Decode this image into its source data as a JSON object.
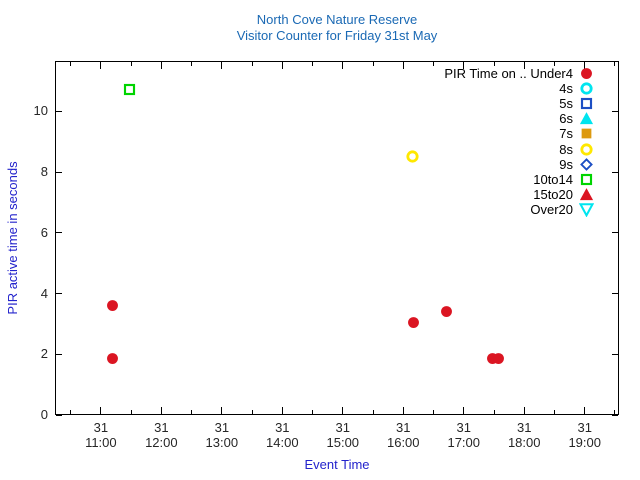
{
  "chart_data": {
    "type": "scatter",
    "title": "North Cove Nature Reserve",
    "subtitle": "Visitor Counter for Friday 31st May",
    "xlabel": "Event Time",
    "ylabel": "PIR active time in seconds",
    "grid": false,
    "legend_position": "top-right-inside",
    "x_axis": {
      "range_minutes": [
        614.5,
        1174
      ],
      "minor_step_minutes": 30,
      "ticks": [
        {
          "day": "31",
          "time": "11:00"
        },
        {
          "day": "31",
          "time": "12:00"
        },
        {
          "day": "31",
          "time": "13:00"
        },
        {
          "day": "31",
          "time": "14:00"
        },
        {
          "day": "31",
          "time": "15:00"
        },
        {
          "day": "31",
          "time": "16:00"
        },
        {
          "day": "31",
          "time": "17:00"
        },
        {
          "day": "31",
          "time": "18:00"
        },
        {
          "day": "31",
          "time": "19:00"
        }
      ]
    },
    "y_axis": {
      "range": [
        0,
        11.66
      ],
      "ticks": [
        0,
        2,
        4,
        6,
        8,
        10
      ]
    },
    "legend": [
      {
        "label": "PIR Time on .. Under4",
        "shape": "circle",
        "fill": true,
        "color": "#db1522"
      },
      {
        "label": "4s",
        "shape": "circle",
        "fill": false,
        "color": "#00e5ef"
      },
      {
        "label": "5s",
        "shape": "square",
        "fill": false,
        "color": "#1d4fc4"
      },
      {
        "label": "6s",
        "shape": "triangle-up",
        "fill": true,
        "color": "#00e5ef"
      },
      {
        "label": "7s",
        "shape": "square",
        "fill": true,
        "color": "#dd9a10"
      },
      {
        "label": "8s",
        "shape": "circle",
        "fill": false,
        "color": "#ffe800"
      },
      {
        "label": "9s",
        "shape": "diamond",
        "fill": false,
        "color": "#1d4fc4"
      },
      {
        "label": "10to14",
        "shape": "square",
        "fill": false,
        "color": "#00d400"
      },
      {
        "label": "15to20",
        "shape": "triangle-up",
        "fill": true,
        "color": "#db1522"
      },
      {
        "label": "Over20",
        "shape": "triangle-down",
        "fill": false,
        "color": "#00e5ef"
      }
    ],
    "series": [
      {
        "name": "Under4",
        "shape": "circle",
        "fill": true,
        "color": "#db1522",
        "points": [
          {
            "time": "11:12",
            "value": 3.6
          },
          {
            "time": "11:12",
            "value": 1.87
          },
          {
            "time": "16:10",
            "value": 3.05
          },
          {
            "time": "16:43",
            "value": 3.4
          },
          {
            "time": "17:29",
            "value": 1.85
          },
          {
            "time": "17:34",
            "value": 1.85
          }
        ]
      },
      {
        "name": "8s",
        "shape": "circle",
        "fill": false,
        "color": "#ffe800",
        "points": [
          {
            "time": "16:09",
            "value": 8.5
          }
        ]
      },
      {
        "name": "10to14",
        "shape": "square",
        "fill": false,
        "color": "#00d400",
        "points": [
          {
            "time": "11:28",
            "value": 10.72
          }
        ]
      }
    ]
  }
}
